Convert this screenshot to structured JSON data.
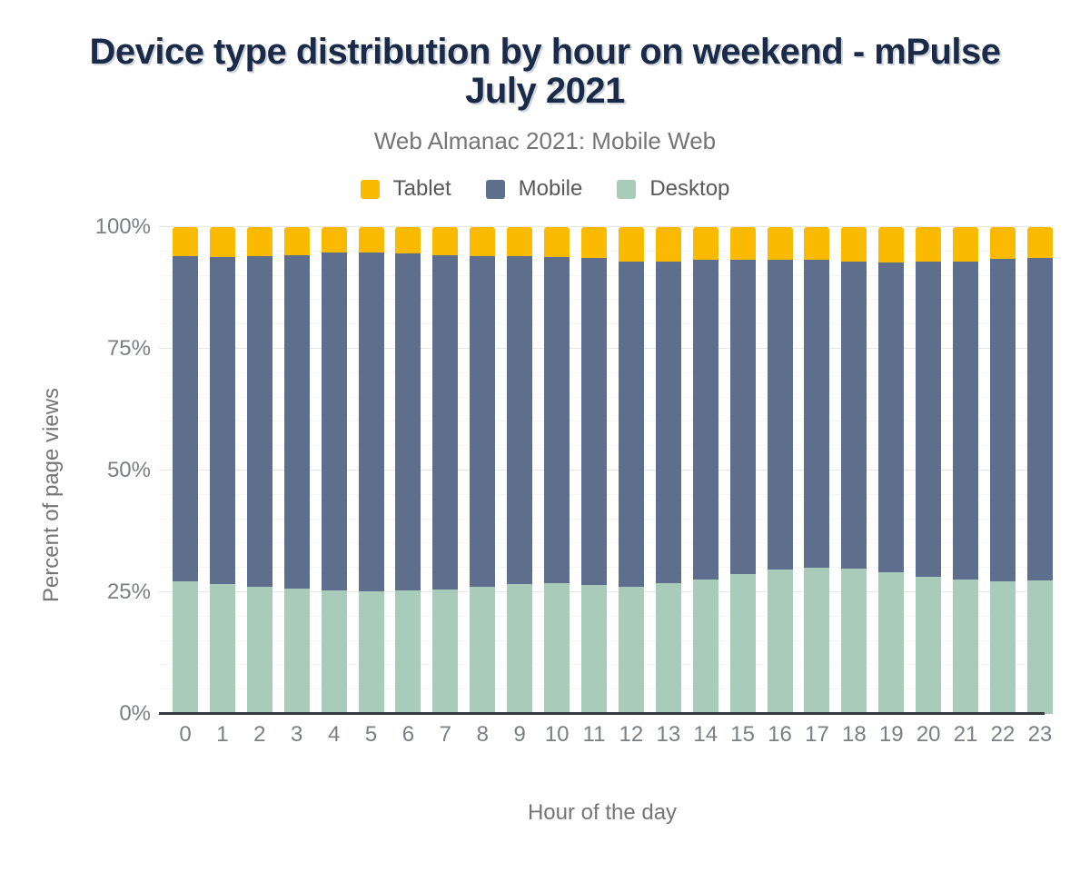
{
  "title": "Device type distribution by hour on weekend - mPulse July 2021",
  "subtitle": "Web Almanac 2021: Mobile Web",
  "legend": [
    {
      "label": "Tablet",
      "color": "#f9ba00"
    },
    {
      "label": "Mobile",
      "color": "#5e6f8e"
    },
    {
      "label": "Desktop",
      "color": "#a9ccba"
    }
  ],
  "colors": {
    "title": "#1a2b49",
    "subtitle": "#757575",
    "axis_text": "#7b7f83",
    "tablet": "#f9ba00",
    "mobile": "#5e6f8e",
    "desktop": "#a9ccba",
    "baseline": "#33373d",
    "grid_major": "#e7e7e7",
    "grid_minor": "#f5f5f5"
  },
  "chart_data": {
    "type": "bar",
    "stacked": true,
    "title": "Device type distribution by hour on weekend - mPulse July 2021",
    "subtitle": "Web Almanac 2021: Mobile Web",
    "xlabel": "Hour of the day",
    "ylabel": "Percent of page views",
    "ylim": [
      0,
      100
    ],
    "yticks": [
      {
        "value": 0,
        "label": "0%"
      },
      {
        "value": 25,
        "label": "25%"
      },
      {
        "value": 50,
        "label": "50%"
      },
      {
        "value": 75,
        "label": "75%"
      },
      {
        "value": 100,
        "label": "100%"
      }
    ],
    "grid": true,
    "minor_grid_step": 5,
    "legend_position": "top",
    "stack_order_bottom_to_top": [
      "Desktop",
      "Mobile",
      "Tablet"
    ],
    "categories": [
      "0",
      "1",
      "2",
      "3",
      "4",
      "5",
      "6",
      "7",
      "8",
      "9",
      "10",
      "11",
      "12",
      "13",
      "14",
      "15",
      "16",
      "17",
      "18",
      "19",
      "20",
      "21",
      "22",
      "23"
    ],
    "series": [
      {
        "name": "Tablet",
        "color": "#f9ba00",
        "values": [
          5.9,
          6.2,
          6.0,
          5.7,
          5.3,
          5.2,
          5.5,
          5.8,
          5.9,
          6.0,
          6.2,
          6.4,
          7.0,
          7.0,
          6.8,
          6.7,
          6.7,
          6.8,
          7.0,
          7.2,
          7.1,
          7.0,
          6.6,
          6.3
        ]
      },
      {
        "name": "Mobile",
        "color": "#5e6f8e",
        "values": [
          66.8,
          67.1,
          67.8,
          68.6,
          69.4,
          69.7,
          69.2,
          68.6,
          68.0,
          67.3,
          66.9,
          67.1,
          66.8,
          66.1,
          65.6,
          64.6,
          63.6,
          63.2,
          63.1,
          63.7,
          64.8,
          65.3,
          66.1,
          66.2
        ]
      },
      {
        "name": "Desktop",
        "color": "#a9ccba",
        "values": [
          27.3,
          26.7,
          26.2,
          25.7,
          25.3,
          25.1,
          25.3,
          25.6,
          26.1,
          26.7,
          26.9,
          26.5,
          26.2,
          26.9,
          27.6,
          28.7,
          29.7,
          30.0,
          29.9,
          29.1,
          28.1,
          27.7,
          27.3,
          27.5
        ]
      }
    ]
  }
}
